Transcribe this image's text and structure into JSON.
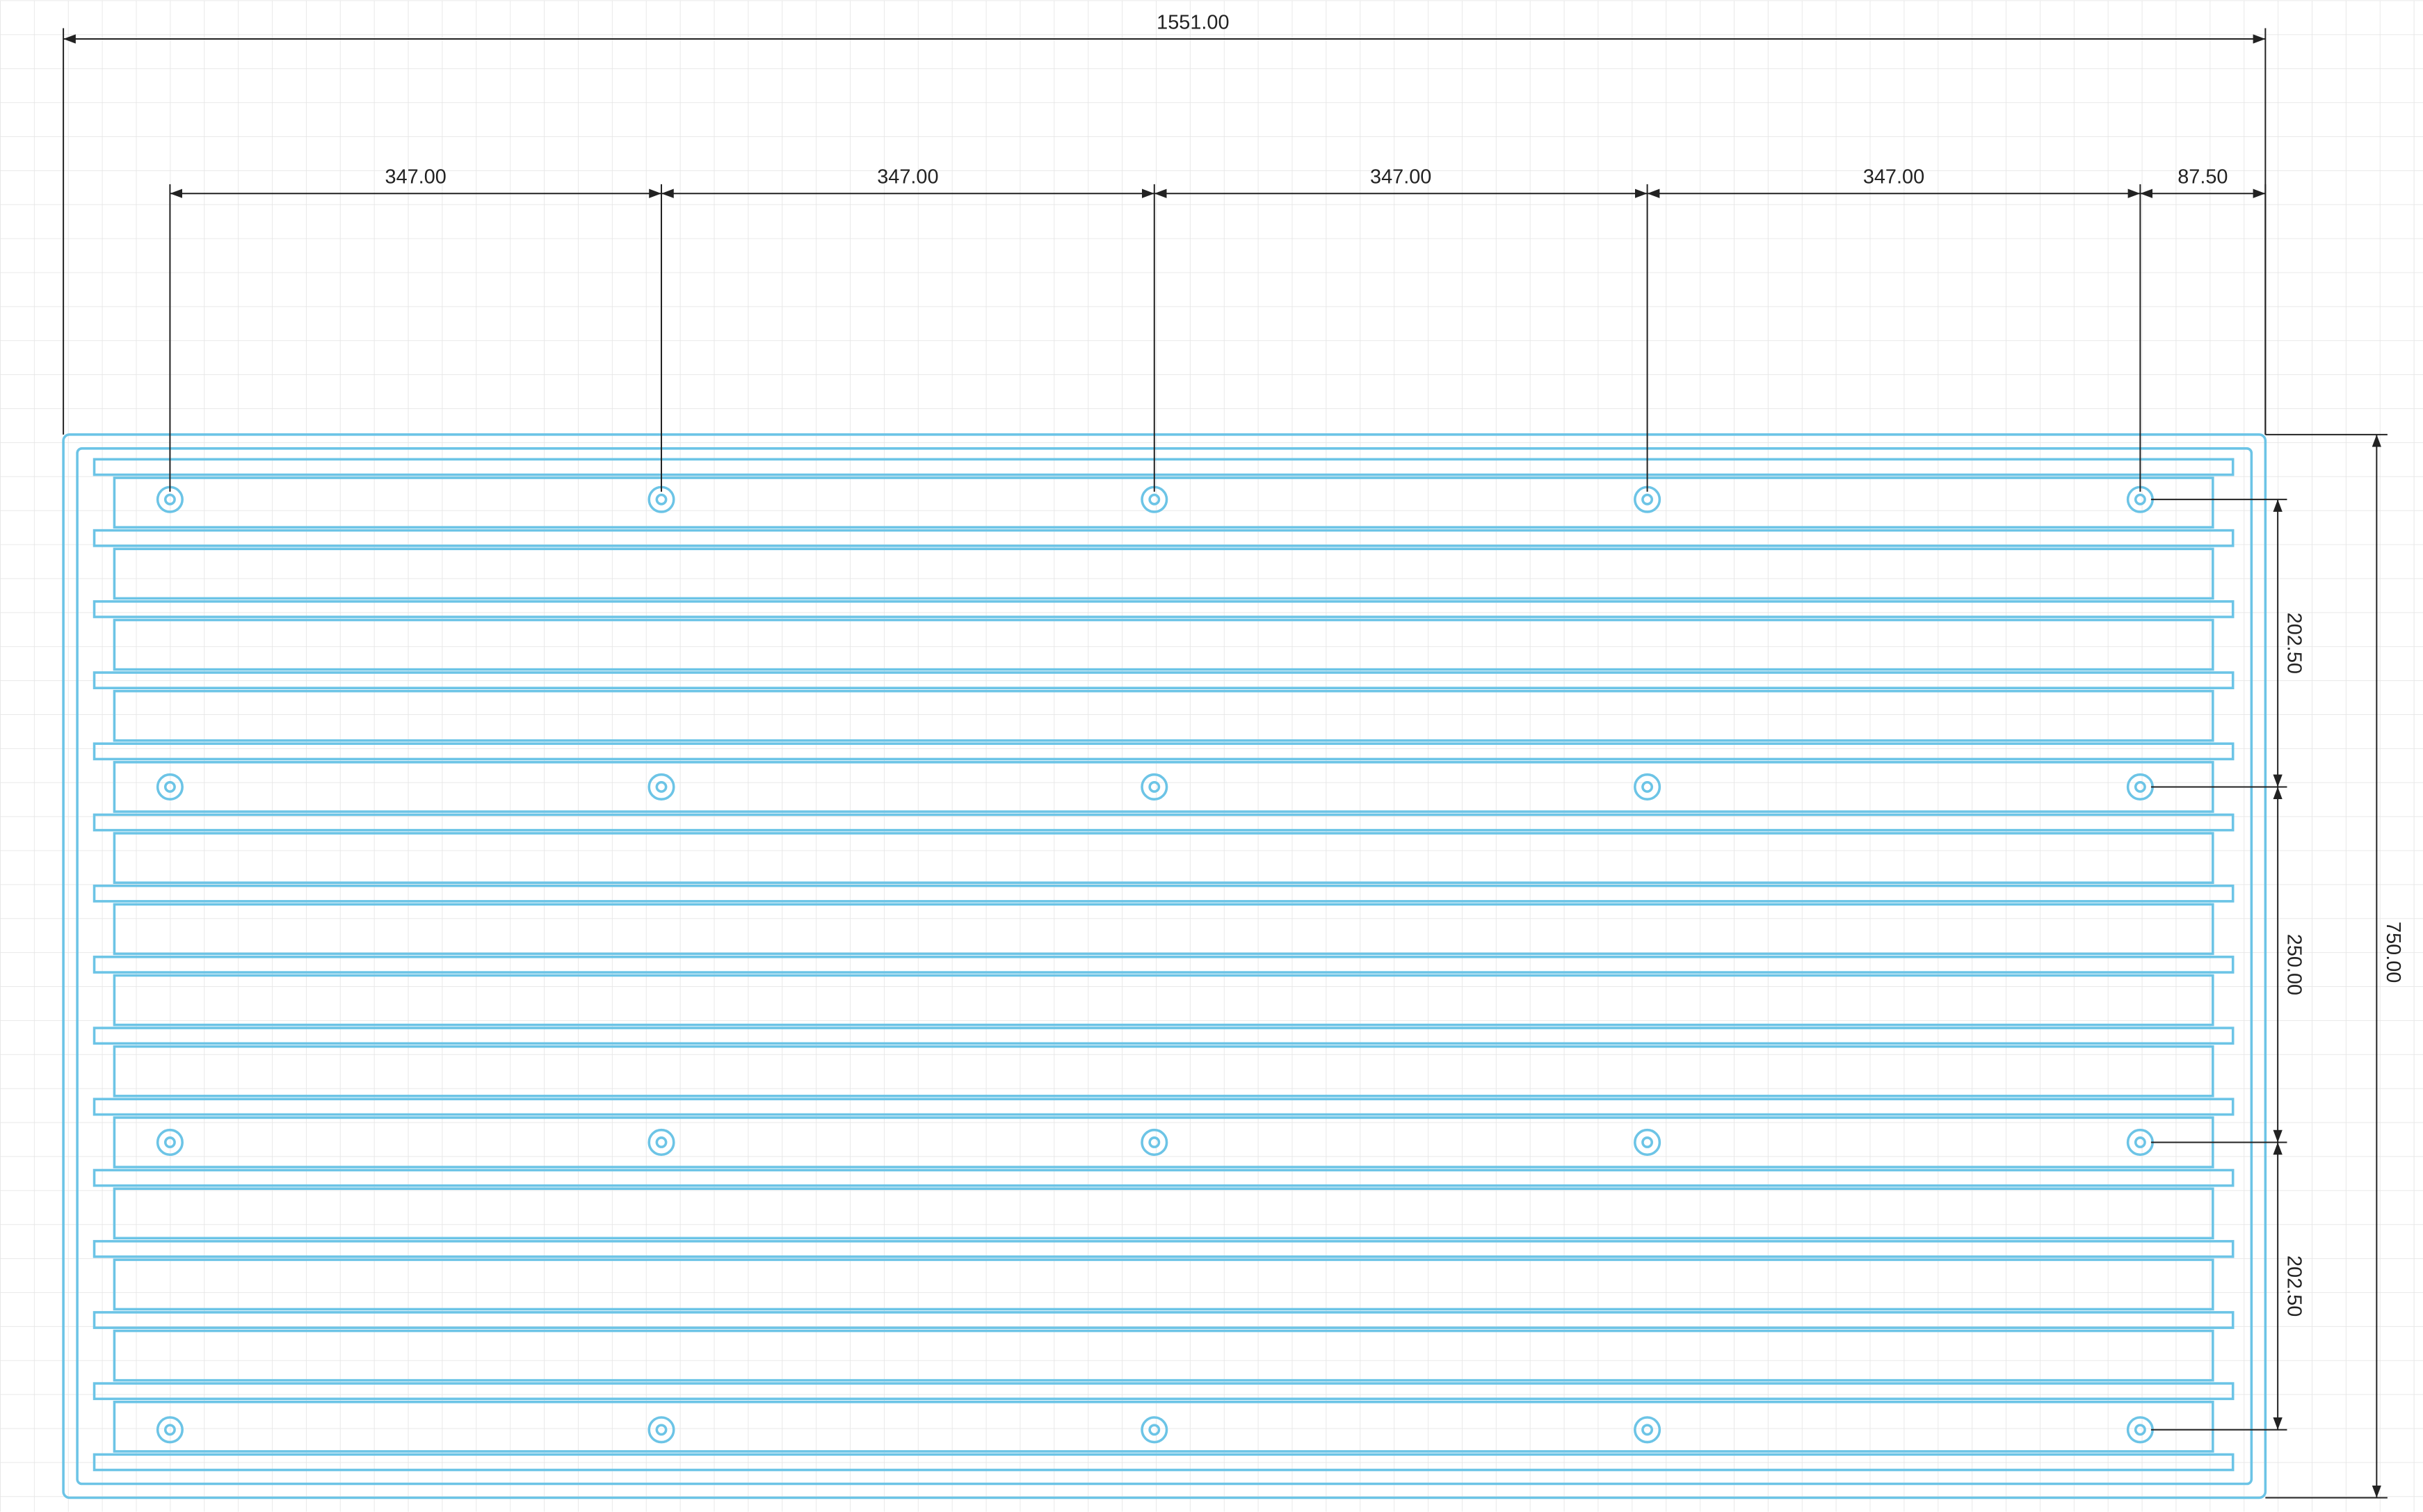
{
  "dimensions": {
    "overall_width": "1551.00",
    "hole_spacing": [
      "347.00",
      "347.00",
      "347.00",
      "347.00"
    ],
    "edge_offset": "87.50",
    "row_spacing": [
      "202.50",
      "250.00",
      "202.50"
    ],
    "overall_height": "750.00"
  }
}
